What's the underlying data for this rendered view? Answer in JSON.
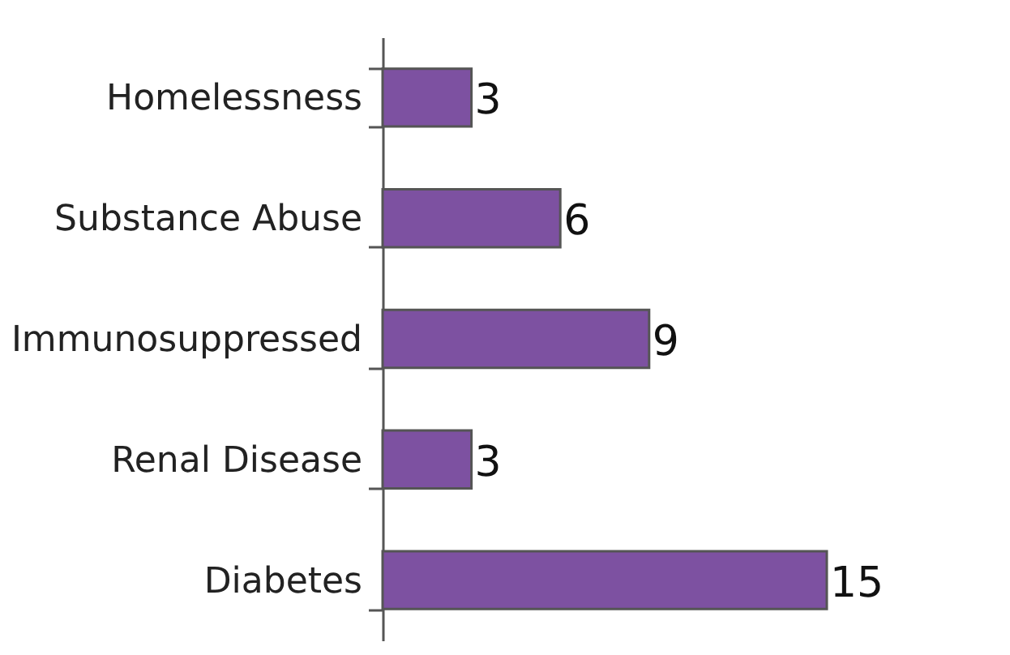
{
  "chart_data": {
    "type": "bar",
    "orientation": "horizontal",
    "categories": [
      "Homelessness",
      "Substance Abuse",
      "Immunosuppressed",
      "Renal Disease",
      "Diabetes"
    ],
    "values": [
      3,
      6,
      9,
      3,
      15
    ],
    "color": "#7d51a1",
    "data_labels": true
  }
}
